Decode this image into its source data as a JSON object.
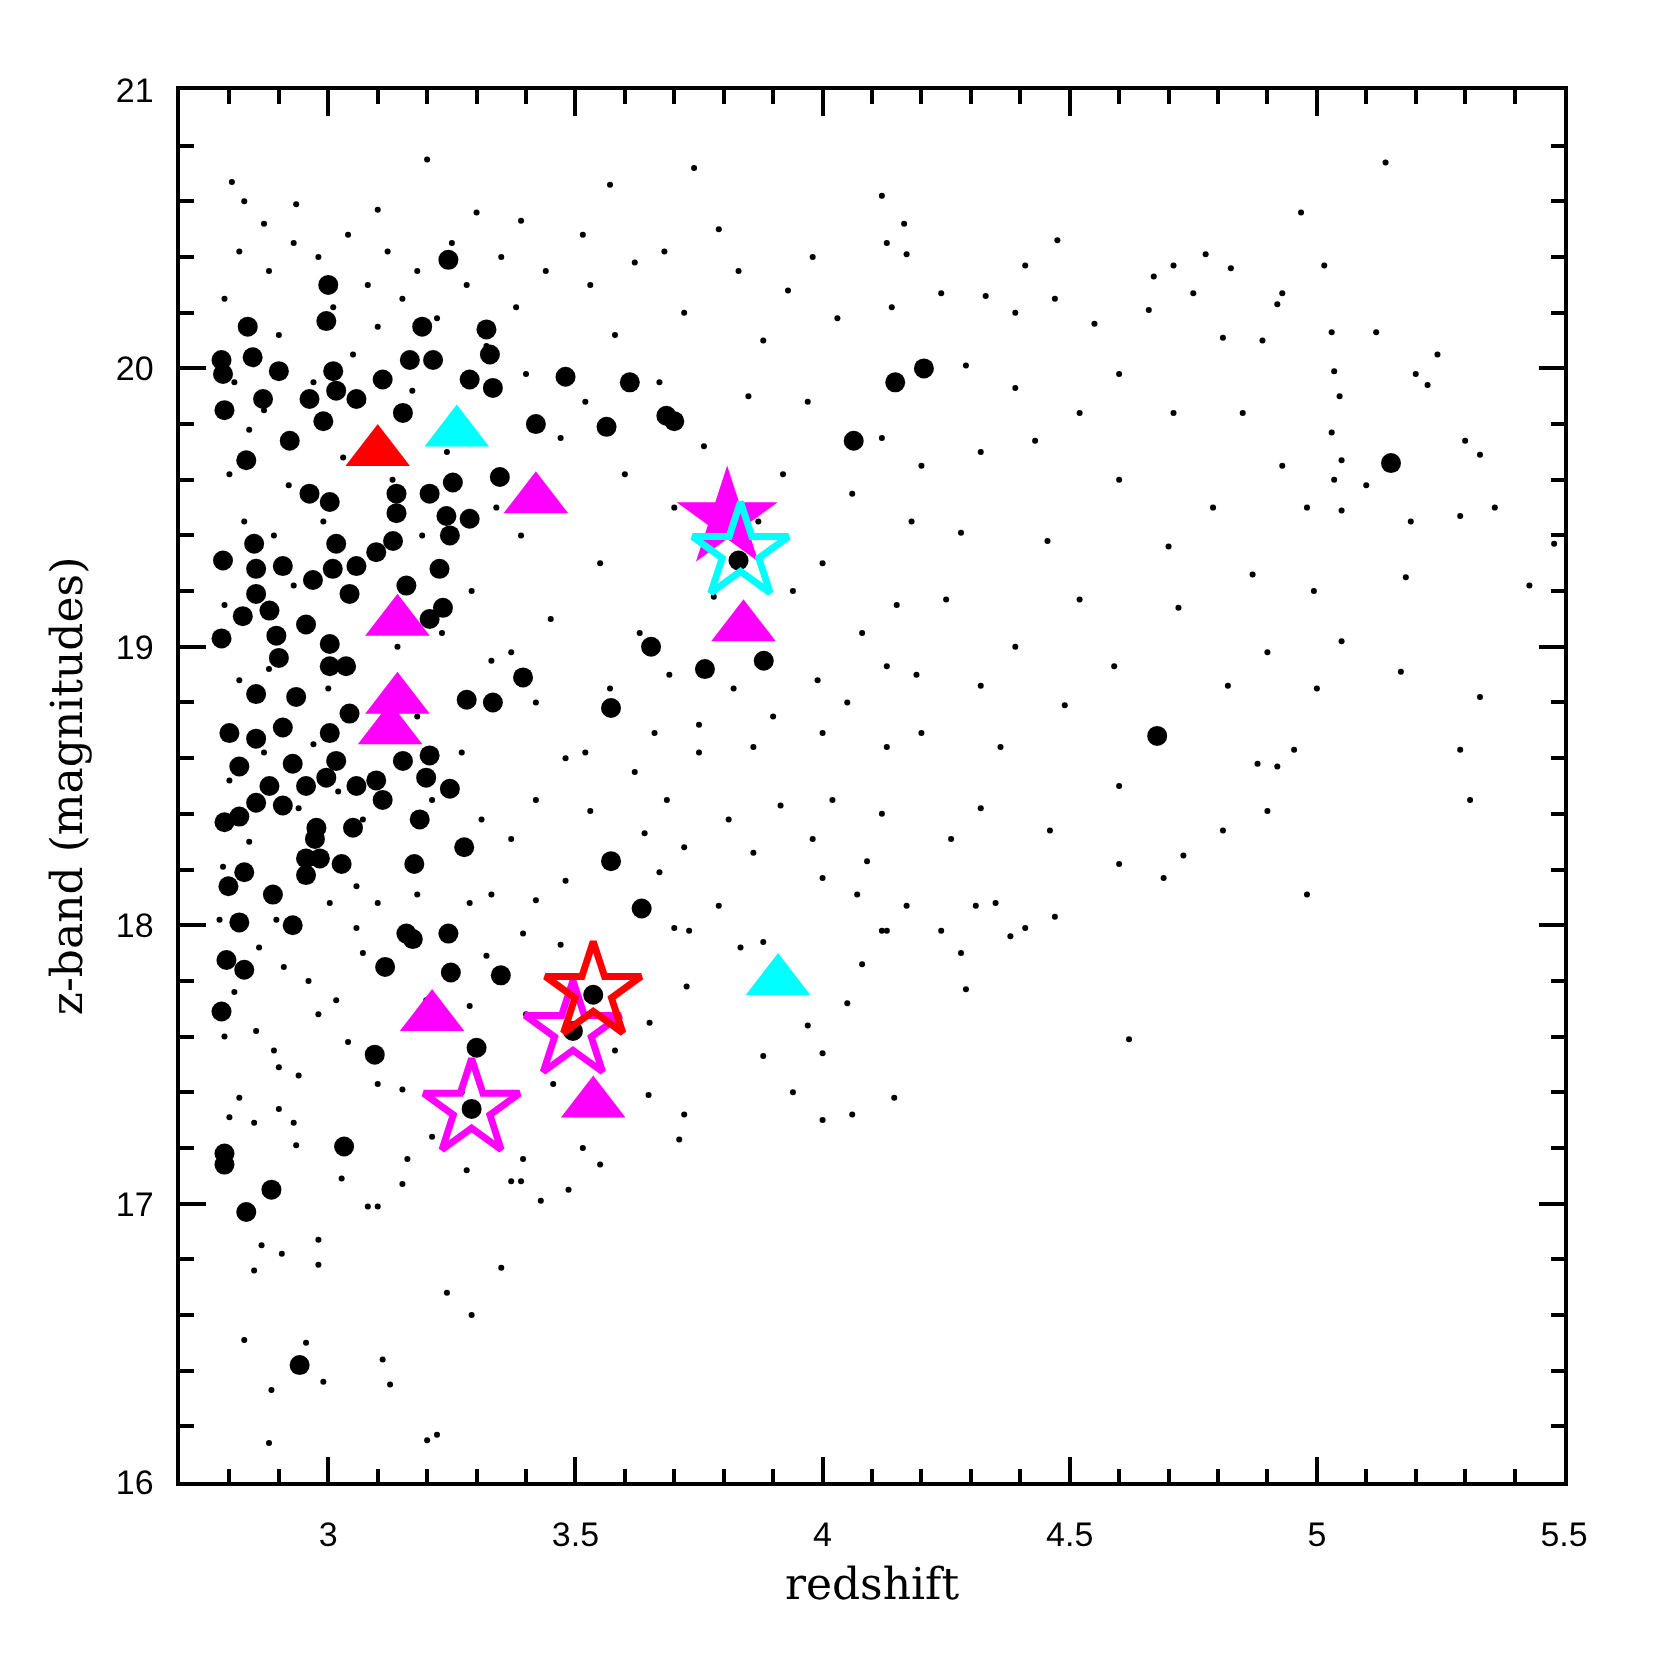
{
  "chart_data": {
    "type": "scatter",
    "xlabel": "redshift",
    "ylabel": "z-band (magnitudes)",
    "xlim": [
      2.7,
      5.5
    ],
    "ylim": [
      16,
      21
    ],
    "xticks": [
      {
        "value": 2.8,
        "label": null
      },
      {
        "value": 2.9,
        "label": null
      },
      3,
      {
        "value": 3.1,
        "label": null
      },
      {
        "value": 3.2,
        "label": null
      },
      {
        "value": 3.3,
        "label": null
      },
      {
        "value": 3.4,
        "label": null
      },
      3.5,
      {
        "value": 3.6,
        "label": null
      },
      {
        "value": 3.7,
        "label": null
      },
      {
        "value": 3.8,
        "label": null
      },
      {
        "value": 3.9,
        "label": null
      },
      4,
      {
        "value": 4.1,
        "label": null
      },
      {
        "value": 4.2,
        "label": null
      },
      {
        "value": 4.3,
        "label": null
      },
      {
        "value": 4.4,
        "label": null
      },
      4.5,
      {
        "value": 4.6,
        "label": null
      },
      {
        "value": 4.7,
        "label": null
      },
      {
        "value": 4.8,
        "label": null
      },
      {
        "value": 4.9,
        "label": null
      },
      5,
      {
        "value": 5.1,
        "label": null
      },
      {
        "value": 5.2,
        "label": null
      },
      {
        "value": 5.3,
        "label": null
      },
      {
        "value": 5.4,
        "label": null
      },
      5.5
    ],
    "yticks": [
      16,
      {
        "value": 16.2,
        "label": null
      },
      {
        "value": 16.4,
        "label": null
      },
      {
        "value": 16.6,
        "label": null
      },
      {
        "value": 16.8,
        "label": null
      },
      17,
      {
        "value": 17.2,
        "label": null
      },
      {
        "value": 17.4,
        "label": null
      },
      {
        "value": 17.6,
        "label": null
      },
      {
        "value": 17.8,
        "label": null
      },
      18,
      {
        "value": 18.2,
        "label": null
      },
      {
        "value": 18.4,
        "label": null
      },
      {
        "value": 18.6,
        "label": null
      },
      {
        "value": 18.8,
        "label": null
      },
      19,
      {
        "value": 19.2,
        "label": null
      },
      {
        "value": 19.4,
        "label": null
      },
      {
        "value": 19.6,
        "label": null
      },
      {
        "value": 19.8,
        "label": null
      },
      20,
      {
        "value": 20.2,
        "label": null
      },
      {
        "value": 20.4,
        "label": null
      },
      {
        "value": 20.6,
        "label": null
      },
      {
        "value": 20.8,
        "label": null
      },
      21
    ],
    "series": [
      {
        "color": "#000000",
        "marker": "circle",
        "x": [
          2.87,
          2.935,
          3.1,
          3.3,
          3.39,
          3.515,
          2.805,
          2.83,
          3.74,
          3.2,
          4.12,
          3.57,
          5.139,
          4.968,
          5.015,
          5.48,
          5.43,
          5.36,
          5.33,
          5.3,
          5.244,
          5.2,
          5.224,
          5.29,
          5.19,
          5.18,
          5.17,
          5.33,
          5.29,
          5.31,
          5.12,
          5.03,
          5.035,
          5.046,
          5.03,
          5.05,
          5.035,
          5.05,
          5.1,
          4.994,
          5.05,
          5.0,
          4.954,
          4.98,
          4.9,
          4.81,
          4.73,
          4.69,
          4.6,
          4.62,
          4.47,
          4.41,
          4.38,
          4.29,
          4.28,
          4.24,
          4.17,
          4.13,
          4.31,
          4.35,
          4.26,
          4.46,
          4.32,
          4.6,
          4.88,
          4.92,
          4.165,
          4.475,
          4.41,
          4.67,
          4.71,
          4.775,
          4.826,
          4.93,
          4.92,
          4.13,
          4.17,
          4.24,
          4.33,
          4.39,
          4.47,
          4.55,
          4.66,
          4.75,
          4.81,
          4.89,
          4.52,
          4.71,
          4.6,
          4.79,
          4.455,
          4.7,
          4.87,
          4.52,
          4.72,
          4.39,
          4.59,
          4.82,
          4.32,
          4.49,
          4.25,
          4.28,
          4.2,
          4.32,
          4.43,
          4.39,
          4.29,
          4.98,
          4.93,
          4.85,
          4.6,
          4.9,
          4.2,
          4.36,
          4.13,
          2.88,
          3.2,
          3.22,
          2.885,
          3.11,
          3.125,
          2.99,
          2.955,
          2.83,
          3.24,
          3.29,
          3.35,
          2.98,
          2.98,
          2.865,
          2.85,
          2.906,
          3.08,
          3.1,
          3.15,
          3.37,
          3.39,
          3.43,
          3.486,
          3.28,
          3.027,
          2.935,
          2.9,
          2.82,
          2.8,
          2.85,
          2.93,
          3.15,
          3.27,
          3.515,
          3.55,
          3.394,
          3.72,
          3.648,
          3.65,
          3.455,
          3.4,
          3.58,
          3.725,
          2.854,
          2.89,
          2.9,
          2.94,
          3.04,
          3.1,
          3.16,
          3.21,
          2.79,
          2.81,
          2.91,
          2.96,
          3.016,
          2.98,
          3.057,
          3.07,
          3.124,
          3.198,
          3.286,
          3.32,
          3.394,
          3.47,
          3.7,
          3.72,
          3.64,
          3.53,
          3.42,
          3.31,
          3.37,
          3.48,
          3.42,
          3.33,
          3.286,
          3.18,
          3.1,
          3.057,
          3.003,
          2.895,
          2.86,
          2.787,
          2.78,
          4.0,
          4.07,
          4.05,
          3.97,
          4.0,
          3.88,
          3.94,
          4.145,
          4.06,
          4.0,
          3.71,
          3.834,
          3.88,
          4.08,
          4.12,
          3.73,
          3.79,
          3.67,
          3.86,
          3.98,
          4.09,
          3.81,
          3.915,
          4.02,
          4.12,
          3.685,
          3.62,
          3.75,
          3.86,
          4.0,
          4.13,
          3.66,
          2.79,
          2.81,
          2.8,
          2.83,
          2.79,
          2.82,
          2.8,
          2.84,
          2.82,
          2.84,
          2.88,
          2.9,
          2.87,
          2.92,
          2.89,
          2.93,
          2.88,
          2.94,
          2.87,
          2.93,
          2.98,
          3.01,
          2.97,
          3.03,
          2.99,
          3.0,
          3.02,
          2.97,
          3.05,
          3.04,
          3.08,
          3.12,
          3.1,
          3.07,
          3.13,
          3.09,
          3.14,
          3.07,
          3.15,
          3.18,
          3.22,
          3.17,
          3.24,
          3.19,
          3.23,
          3.18,
          3.21,
          3.25,
          3.28,
          3.32,
          3.34,
          3.29,
          3.33,
          3.27,
          3.35,
          3.38,
          3.44,
          3.4,
          3.47,
          3.39,
          3.45,
          3.42,
          3.48,
          3.37,
          3.53,
          3.58,
          3.62,
          3.52,
          3.6,
          3.55,
          3.63,
          3.57,
          3.52,
          3.68,
          3.72,
          3.67,
          3.76,
          3.7,
          3.78,
          3.69,
          3.75,
          3.79,
          3.83,
          3.88,
          3.85,
          3.92,
          3.87,
          3.94,
          3.82,
          3.9,
          3.93,
          3.98,
          4.03,
          3.97,
          4.06,
          4.0,
          4.08,
          3.99,
          4.05,
          4.14,
          4.12,
          4.18,
          4.15,
          4.19
        ],
        "values": [
          20.52,
          20.59,
          20.57,
          20.56,
          20.53,
          20.48,
          20.67,
          20.6,
          20.72,
          20.75,
          20.62,
          20.66,
          20.74,
          20.56,
          20.37,
          19.37,
          19.22,
          19.5,
          19.69,
          19.74,
          20.05,
          19.98,
          19.94,
          19.47,
          19.45,
          19.25,
          18.91,
          18.82,
          18.63,
          18.45,
          20.13,
          20.13,
          19.99,
          19.9,
          19.77,
          19.67,
          19.6,
          19.49,
          19.58,
          19.2,
          19.02,
          18.85,
          18.63,
          18.11,
          18.41,
          18.34,
          18.25,
          18.17,
          18.22,
          17.59,
          18.03,
          17.99,
          17.96,
          17.77,
          17.9,
          17.98,
          18.07,
          17.98,
          18.07,
          18.08,
          18.31,
          18.34,
          18.42,
          18.5,
          18.58,
          18.57,
          20.52,
          20.46,
          20.37,
          20.33,
          20.37,
          20.41,
          20.36,
          20.27,
          20.23,
          20.45,
          20.41,
          20.27,
          20.26,
          20.2,
          20.25,
          20.16,
          20.21,
          20.27,
          20.11,
          20.1,
          19.84,
          19.84,
          19.6,
          19.5,
          19.38,
          19.36,
          19.26,
          19.17,
          19.14,
          19.0,
          18.93,
          18.86,
          18.86,
          18.79,
          19.17,
          19.41,
          19.65,
          19.7,
          19.74,
          19.93,
          20.01,
          19.5,
          19.65,
          19.84,
          19.98,
          18.98,
          18.69,
          18.64,
          18.93,
          16.14,
          16.15,
          16.17,
          16.33,
          16.44,
          16.35,
          16.36,
          16.5,
          16.51,
          16.68,
          16.6,
          16.77,
          16.87,
          16.78,
          16.85,
          16.76,
          16.82,
          16.99,
          16.99,
          17.07,
          17.08,
          17.08,
          17.01,
          17.05,
          17.12,
          17.09,
          17.21,
          17.34,
          17.38,
          17.31,
          17.29,
          17.29,
          17.41,
          17.4,
          17.2,
          17.14,
          17.16,
          17.32,
          17.39,
          17.65,
          17.43,
          17.68,
          17.55,
          17.78,
          17.62,
          17.55,
          17.49,
          17.46,
          17.58,
          17.43,
          17.16,
          17.24,
          17.6,
          17.76,
          17.85,
          17.8,
          17.73,
          17.68,
          17.99,
          17.9,
          17.87,
          17.73,
          17.71,
          17.89,
          17.97,
          17.93,
          17.99,
          18.28,
          18.33,
          18.41,
          18.45,
          18.38,
          18.31,
          18.16,
          18.09,
          18.11,
          18.08,
          18.11,
          18.08,
          18.14,
          18.08,
          18.02,
          17.92,
          18.21,
          18.02,
          18.17,
          18.11,
          17.72,
          17.64,
          17.54,
          17.53,
          17.4,
          17.38,
          17.32,
          17.3,
          17.23,
          17.92,
          17.94,
          17.86,
          17.98,
          17.98,
          18.07,
          18.19,
          18.26,
          18.31,
          18.23,
          18.38,
          18.43,
          18.45,
          18.4,
          18.45,
          18.55,
          18.62,
          18.64,
          18.69,
          18.64,
          18.69,
          20.25,
          19.95,
          19.62,
          19.45,
          19.15,
          18.88,
          18.52,
          18.3,
          20.42,
          19.78,
          20.35,
          20.12,
          19.85,
          19.58,
          19.4,
          19.22,
          18.92,
          18.42,
          18.62,
          20.45,
          20.4,
          20.22,
          19.95,
          19.68,
          19.45,
          18.85,
          18.48,
          18.65,
          20.05,
          20.48,
          20.3,
          20.42,
          20.15,
          19.88,
          19.6,
          19.32,
          19.0,
          18.38,
          20.25,
          20.35,
          20.18,
          19.92,
          19.7,
          19.4,
          19.05,
          18.75,
          18.45,
          20.45,
          20.3,
          20.08,
          19.5,
          19.2,
          18.95,
          18.62,
          20.4,
          20.22,
          20.35,
          19.98,
          19.75,
          19.4,
          19.1,
          18.8,
          18.6,
          18.98,
          20.3,
          20.12,
          20.38,
          19.88,
          19.62,
          19.3,
          19.05,
          18.85,
          18.62,
          20.42,
          20.2,
          19.95,
          19.72,
          19.5,
          19.18,
          18.9,
          18.72,
          20.5,
          20.35,
          20.1,
          19.9,
          19.62,
          19.45,
          19.2,
          18.85,
          18.75,
          20.28,
          20.4,
          20.18,
          19.88,
          19.55,
          19.3,
          19.05,
          18.88,
          18.8,
          20.22,
          19.75,
          19.45,
          19.15,
          18.9
        ]
      },
      {
        "color": "#000000",
        "marker": "circle",
        "x": [
          3.243,
          3.0,
          2.996,
          2.837,
          2.784,
          2.787,
          2.847,
          2.9,
          2.868,
          2.79,
          3.01,
          3.016,
          2.962,
          3.057,
          3.11,
          3.165,
          3.212,
          3.19,
          3.32,
          3.327,
          3.286,
          3.333,
          3.151,
          3.48,
          3.61,
          3.684,
          3.7,
          3.563,
          3.42,
          2.922,
          2.99,
          2.834,
          2.962,
          3.003,
          3.205,
          3.252,
          3.347,
          3.286,
          3.239,
          3.138,
          3.138,
          3.246,
          3.016,
          3.097,
          3.131,
          2.85,
          2.787,
          2.854,
          2.908,
          3.009,
          3.057,
          3.225,
          2.969,
          2.854,
          3.043,
          3.158,
          3.232,
          2.827,
          2.881,
          2.955,
          2.784,
          2.895,
          3.003,
          3.205,
          3.394,
          3.653,
          2.9,
          2.854,
          2.935,
          3.003,
          3.036,
          3.28,
          3.333,
          3.572,
          2.8,
          2.82,
          2.854,
          2.908,
          3.003,
          3.043,
          3.016,
          2.928,
          3.151,
          3.205,
          3.246,
          2.881,
          2.955,
          3.057,
          3.097,
          2.996,
          3.198,
          2.854,
          2.908,
          2.79,
          2.82,
          3.11,
          3.185,
          2.976,
          2.973,
          3.05,
          3.275,
          2.955,
          2.983,
          3.027,
          3.174,
          2.83,
          2.955,
          2.798,
          2.888,
          3.572,
          3.634,
          2.82,
          2.928,
          3.158,
          3.171,
          3.243,
          2.794,
          2.83,
          3.115,
          3.248,
          3.349,
          2.784,
          3.094,
          3.3,
          3.29,
          3.536,
          3.495,
          3.032,
          2.79,
          2.79,
          2.885,
          2.834,
          2.942,
          4.147,
          4.205,
          5.15,
          4.677,
          4.063,
          3.762,
          3.881,
          3.83
        ],
        "values": [
          20.39,
          20.3,
          20.17,
          20.15,
          20.03,
          19.98,
          20.04,
          19.99,
          19.89,
          19.85,
          19.99,
          19.92,
          19.89,
          19.89,
          19.96,
          20.03,
          20.03,
          20.15,
          20.14,
          20.05,
          19.96,
          19.93,
          19.84,
          19.97,
          19.95,
          19.83,
          19.81,
          19.79,
          19.8,
          19.74,
          19.81,
          19.67,
          19.55,
          19.52,
          19.55,
          19.59,
          19.61,
          19.46,
          19.47,
          19.55,
          19.48,
          19.4,
          19.37,
          19.34,
          19.38,
          19.37,
          19.31,
          19.28,
          19.29,
          19.28,
          19.29,
          19.28,
          19.24,
          19.19,
          19.19,
          19.22,
          19.14,
          19.11,
          19.13,
          19.08,
          19.03,
          19.04,
          19.01,
          19.1,
          18.89,
          19.0,
          18.96,
          18.83,
          18.82,
          18.93,
          18.93,
          18.81,
          18.8,
          18.78,
          18.69,
          18.57,
          18.67,
          18.71,
          18.69,
          18.76,
          18.59,
          18.58,
          18.59,
          18.61,
          18.49,
          18.5,
          18.5,
          18.5,
          18.52,
          18.53,
          18.53,
          18.44,
          18.43,
          18.37,
          18.39,
          18.45,
          18.38,
          18.35,
          18.31,
          18.35,
          18.28,
          18.24,
          18.24,
          18.22,
          18.22,
          18.19,
          18.18,
          18.14,
          18.11,
          18.23,
          18.06,
          18.01,
          18.0,
          17.97,
          17.95,
          17.97,
          17.875,
          17.84,
          17.85,
          17.83,
          17.82,
          17.69,
          17.535,
          17.56,
          17.34,
          17.75,
          17.62,
          17.205,
          17.18,
          17.14,
          17.05,
          16.97,
          16.42,
          19.95,
          20.0,
          19.66,
          18.68,
          19.74,
          18.92,
          18.95,
          19.31
        ]
      },
      {
        "color": "#ff00ff",
        "marker": "triangle",
        "x": [
          3.42,
          3.14,
          3.14,
          3.125,
          3.84,
          3.21,
          3.536
        ],
        "values": [
          19.53,
          19.09,
          18.81,
          18.7,
          19.07,
          17.67,
          17.36
        ]
      },
      {
        "color": "#00ffff",
        "marker": "triangle",
        "x": [
          3.26,
          3.91
        ],
        "values": [
          19.77,
          17.8
        ]
      },
      {
        "color": "#ff0000",
        "marker": "triangle",
        "x": [
          3.1
        ],
        "values": [
          19.7
        ]
      },
      {
        "color": "#ff00ff",
        "marker": "star",
        "x": [
          3.29,
          3.495
        ],
        "values": [
          17.34,
          17.62
        ]
      },
      {
        "color": "#ff0000",
        "marker": "star",
        "x": [
          3.536
        ],
        "values": [
          17.76
        ]
      },
      {
        "color": "#ff00ff",
        "marker": "star",
        "x": [
          3.807
        ],
        "values": [
          19.46
        ]
      },
      {
        "color": "#00ffff",
        "marker": "star",
        "x": [
          3.834
        ],
        "values": [
          19.34
        ]
      }
    ]
  }
}
